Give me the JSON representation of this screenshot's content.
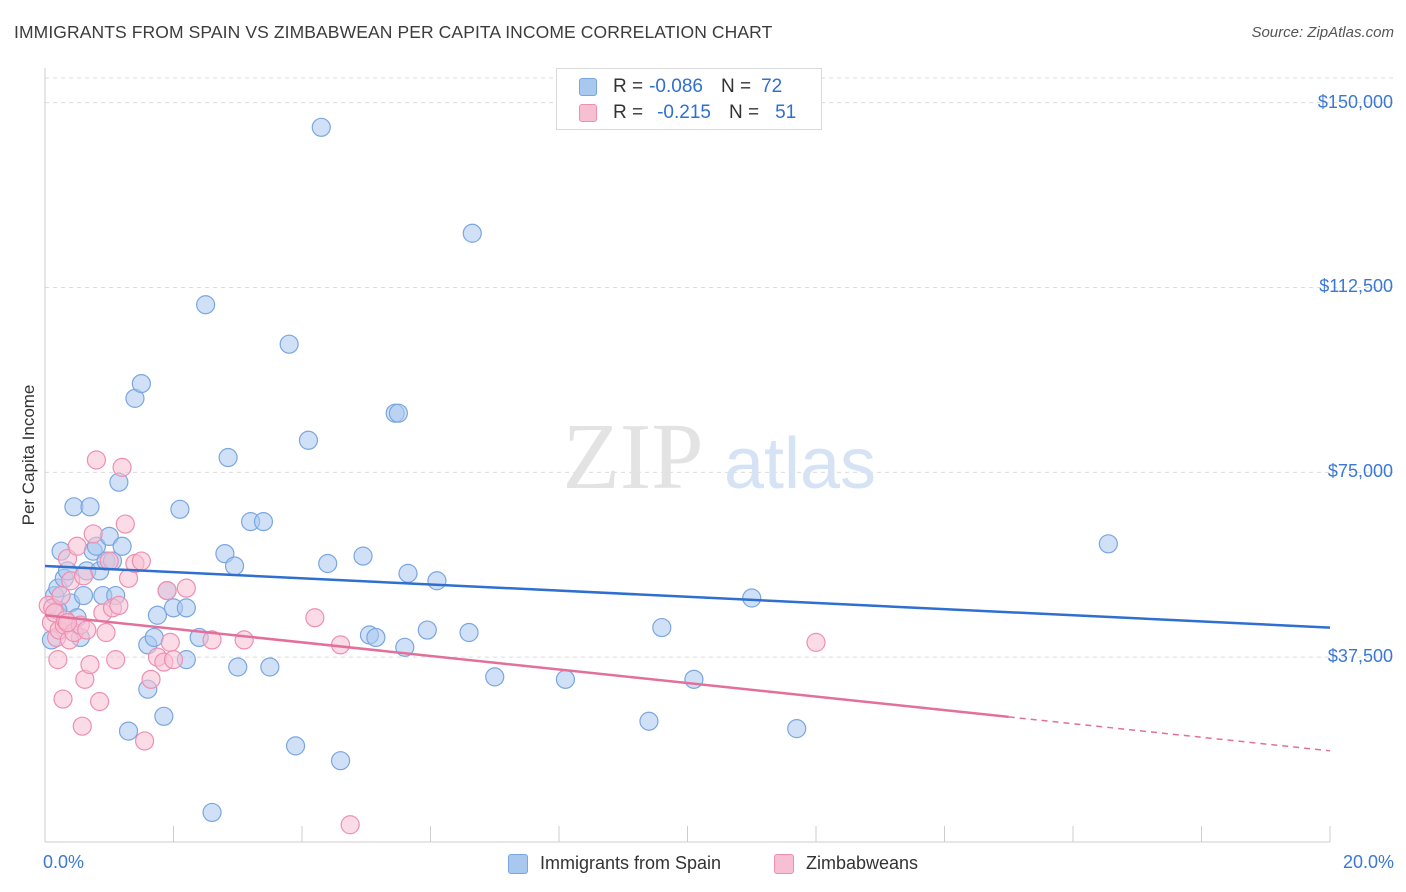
{
  "title": "IMMIGRANTS FROM SPAIN VS ZIMBABWEAN PER CAPITA INCOME CORRELATION CHART",
  "source": "Source: ZipAtlas.com",
  "watermark": {
    "zip": "ZIP",
    "atlas": "atlas"
  },
  "colors": {
    "blue_fill": "#a9c8f0",
    "blue_stroke": "#7aa6e0",
    "blue_line": "#2f6fcf",
    "pink_fill": "#f7bfd2",
    "pink_stroke": "#ee8fb1",
    "pink_line": "#e2709b",
    "axis_label": "#3b78d6",
    "grid": "#dcdcdc"
  },
  "legend": {
    "series1": {
      "r_label": "R =",
      "r_value": "-0.086",
      "n_label": "N =",
      "n_value": "72"
    },
    "series2": {
      "r_label": "R =",
      "r_value": "-0.215",
      "n_label": "N =",
      "n_value": "51"
    }
  },
  "bottom_legend": {
    "series1": "Immigrants from Spain",
    "series2": "Zimbabweans"
  },
  "chart_data": {
    "type": "scatter",
    "title": "IMMIGRANTS FROM SPAIN VS ZIMBABWEAN PER CAPITA INCOME CORRELATION CHART",
    "xlabel": "",
    "ylabel": "Per Capita Income",
    "xlim": [
      0,
      20
    ],
    "ylim": [
      0,
      155000
    ],
    "x_tick_labels": [
      "0.0%",
      "20.0%"
    ],
    "y_ticks": [
      37500,
      75000,
      112500,
      150000
    ],
    "y_tick_labels": [
      "$37,500",
      "$75,000",
      "$112,500",
      "$150,000"
    ],
    "grid": true,
    "series": [
      {
        "name": "Immigrants from Spain",
        "color": "blue",
        "trend": {
          "x_start": 0,
          "y_start": 56000,
          "x_end": 20,
          "y_end": 43500,
          "dashed_from": null
        },
        "points": [
          [
            0.1,
            41000
          ],
          [
            0.15,
            50000
          ],
          [
            0.2,
            51500
          ],
          [
            0.25,
            59000
          ],
          [
            0.3,
            53500
          ],
          [
            0.35,
            55000
          ],
          [
            0.4,
            48500
          ],
          [
            0.45,
            68000
          ],
          [
            0.5,
            45500
          ],
          [
            0.55,
            41500
          ],
          [
            0.6,
            50000
          ],
          [
            0.65,
            55000
          ],
          [
            0.7,
            68000
          ],
          [
            0.75,
            59000
          ],
          [
            0.8,
            60000
          ],
          [
            0.85,
            55000
          ],
          [
            0.9,
            50000
          ],
          [
            0.95,
            57000
          ],
          [
            1.0,
            62000
          ],
          [
            1.05,
            57000
          ],
          [
            1.1,
            50000
          ],
          [
            1.15,
            73000
          ],
          [
            1.2,
            60000
          ],
          [
            1.3,
            22500
          ],
          [
            1.4,
            90000
          ],
          [
            1.5,
            93000
          ],
          [
            1.6,
            31000
          ],
          [
            1.6,
            40000
          ],
          [
            1.7,
            41500
          ],
          [
            1.75,
            46000
          ],
          [
            1.85,
            25500
          ],
          [
            1.9,
            51000
          ],
          [
            2.0,
            47500
          ],
          [
            2.1,
            67500
          ],
          [
            2.2,
            47500
          ],
          [
            2.2,
            37000
          ],
          [
            2.4,
            41500
          ],
          [
            2.5,
            109000
          ],
          [
            2.6,
            6000
          ],
          [
            2.8,
            58500
          ],
          [
            2.85,
            78000
          ],
          [
            2.95,
            56000
          ],
          [
            3.0,
            35500
          ],
          [
            3.2,
            65000
          ],
          [
            3.4,
            65000
          ],
          [
            3.5,
            35500
          ],
          [
            3.8,
            101000
          ],
          [
            3.9,
            19500
          ],
          [
            4.1,
            81500
          ],
          [
            4.3,
            145000
          ],
          [
            4.4,
            56500
          ],
          [
            4.6,
            16500
          ],
          [
            4.95,
            58000
          ],
          [
            5.05,
            42000
          ],
          [
            5.15,
            41500
          ],
          [
            5.45,
            87000
          ],
          [
            5.5,
            87000
          ],
          [
            5.6,
            39500
          ],
          [
            5.65,
            54500
          ],
          [
            5.95,
            43000
          ],
          [
            6.1,
            53000
          ],
          [
            6.6,
            42500
          ],
          [
            6.65,
            123500
          ],
          [
            7.0,
            33500
          ],
          [
            8.1,
            33000
          ],
          [
            9.4,
            24500
          ],
          [
            9.6,
            43500
          ],
          [
            10.1,
            33000
          ],
          [
            11.0,
            49500
          ],
          [
            11.7,
            23000
          ],
          [
            16.55,
            60500
          ],
          [
            0.2,
            47000
          ]
        ]
      },
      {
        "name": "Zimbabweans",
        "color": "pink",
        "trend": {
          "x_start": 0,
          "y_start": 46000,
          "x_end": 20,
          "y_end": 18500,
          "dashed_from": 15
        },
        "points": [
          [
            0.05,
            48000
          ],
          [
            0.1,
            44500
          ],
          [
            0.12,
            47500
          ],
          [
            0.15,
            46500
          ],
          [
            0.18,
            41500
          ],
          [
            0.2,
            37000
          ],
          [
            0.22,
            43000
          ],
          [
            0.25,
            50000
          ],
          [
            0.28,
            29000
          ],
          [
            0.3,
            44000
          ],
          [
            0.32,
            45000
          ],
          [
            0.35,
            57500
          ],
          [
            0.38,
            41000
          ],
          [
            0.4,
            53000
          ],
          [
            0.45,
            42500
          ],
          [
            0.5,
            60000
          ],
          [
            0.55,
            44000
          ],
          [
            0.58,
            23500
          ],
          [
            0.6,
            54000
          ],
          [
            0.62,
            33000
          ],
          [
            0.65,
            43000
          ],
          [
            0.7,
            36000
          ],
          [
            0.75,
            62500
          ],
          [
            0.8,
            77500
          ],
          [
            0.85,
            28500
          ],
          [
            0.9,
            46500
          ],
          [
            0.95,
            42500
          ],
          [
            1.0,
            57000
          ],
          [
            1.05,
            47500
          ],
          [
            1.1,
            37000
          ],
          [
            1.15,
            48000
          ],
          [
            1.2,
            76000
          ],
          [
            1.25,
            64500
          ],
          [
            1.3,
            53500
          ],
          [
            1.4,
            56500
          ],
          [
            1.5,
            57000
          ],
          [
            1.55,
            20500
          ],
          [
            1.65,
            33000
          ],
          [
            1.75,
            37500
          ],
          [
            1.85,
            36500
          ],
          [
            1.9,
            51000
          ],
          [
            1.95,
            40500
          ],
          [
            2.0,
            37000
          ],
          [
            2.2,
            51500
          ],
          [
            2.6,
            41000
          ],
          [
            3.1,
            41000
          ],
          [
            4.2,
            45500
          ],
          [
            4.6,
            40000
          ],
          [
            4.75,
            3500
          ],
          [
            12.0,
            40500
          ],
          [
            0.35,
            44500
          ]
        ]
      }
    ]
  }
}
